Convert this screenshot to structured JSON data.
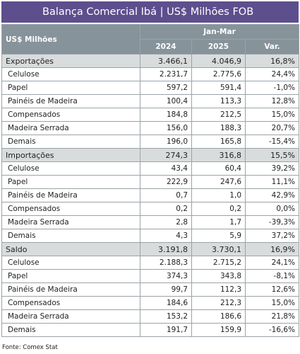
{
  "title": "Balança Comercial Ibá | US$ Milhões FOB",
  "table": {
    "header": {
      "label": "US$ Milhões",
      "period": "Jan-Mar",
      "columns": [
        "2024",
        "2025",
        "Var."
      ]
    },
    "groups": [
      {
        "row": [
          "Exportações",
          "3.466,1",
          "4.046,9",
          "16,8%"
        ],
        "rows": [
          [
            "Celulose",
            "2.231,7",
            "2.775,6",
            "24,4%"
          ],
          [
            "Papel",
            "597,2",
            "591,4",
            "-1,0%"
          ],
          [
            "Painéis de Madeira",
            "100,4",
            "113,3",
            "12,8%"
          ],
          [
            "Compensados",
            "184,8",
            "212,5",
            "15,0%"
          ],
          [
            "Madeira Serrada",
            "156,0",
            "188,3",
            "20,7%"
          ],
          [
            "Demais",
            "196,0",
            "165,8",
            "-15,4%"
          ]
        ]
      },
      {
        "row": [
          "Importações",
          "274,3",
          "316,8",
          "15,5%"
        ],
        "rows": [
          [
            "Celulose",
            "43,4",
            "60,4",
            "39,2%"
          ],
          [
            "Papel",
            "222,9",
            "247,6",
            "11,1%"
          ],
          [
            "Painéis de Madeira",
            "0,7",
            "1,0",
            "42,9%"
          ],
          [
            "Compensados",
            "0,2",
            "0,2",
            "0,0%"
          ],
          [
            "Madeira Serrada",
            "2,8",
            "1,7",
            "-39,3%"
          ],
          [
            "Demais",
            "4,3",
            "5,9",
            "37,2%"
          ]
        ]
      },
      {
        "row": [
          "Saldo",
          "3.191,8",
          "3.730,1",
          "16,9%"
        ],
        "rows": [
          [
            "Celulose",
            "2.188,3",
            "2.715,2",
            "24,1%"
          ],
          [
            "Papel",
            "374,3",
            "343,8",
            "-8,1%"
          ],
          [
            "Painéis de Madeira",
            "99,7",
            "112,3",
            "12,6%"
          ],
          [
            "Compensados",
            "184,6",
            "212,3",
            "15,0%"
          ],
          [
            "Madeira Serrada",
            "153,2",
            "186,6",
            "21,8%"
          ],
          [
            "Demais",
            "191,7",
            "159,9",
            "-16,6%"
          ]
        ]
      }
    ]
  },
  "footer": "Fonte: Comex Stat"
}
